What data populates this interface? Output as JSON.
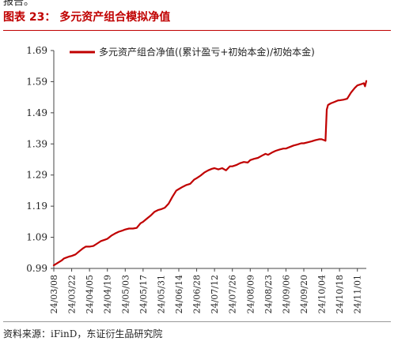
{
  "header": {
    "top_fragment": "报告。",
    "figure_title": "图表 23： 多元资产组合模拟净值"
  },
  "footer": {
    "source": "资料来源：iFinD，东证衍生品研究院"
  },
  "colors": {
    "accent": "#c00000",
    "series": "#c00000"
  },
  "chart_data": {
    "type": "line",
    "title": "",
    "xlabel": "",
    "ylabel": "",
    "ylim": [
      0.99,
      1.69
    ],
    "yticks": [
      "1.69",
      "1.59",
      "1.49",
      "1.39",
      "1.29",
      "1.19",
      "1.09",
      "0.99"
    ],
    "ytick_values": [
      1.69,
      1.59,
      1.49,
      1.39,
      1.29,
      1.19,
      1.09,
      0.99
    ],
    "xlim": [
      "2024-03-08",
      "2024-11-08"
    ],
    "xticks": [
      "24/03/08",
      "24/03/22",
      "24/04/05",
      "24/04/19",
      "24/05/03",
      "24/05/17",
      "24/05/31",
      "24/06/14",
      "24/06/28",
      "24/07/12",
      "24/07/26",
      "24/08/09",
      "24/08/23",
      "24/09/06",
      "24/09/20",
      "24/10/04",
      "24/10/18",
      "24/11/01"
    ],
    "xtick_dates": [
      "2024-03-08",
      "2024-03-22",
      "2024-04-05",
      "2024-04-19",
      "2024-05-03",
      "2024-05-17",
      "2024-05-31",
      "2024-06-14",
      "2024-06-28",
      "2024-07-12",
      "2024-07-26",
      "2024-08-09",
      "2024-08-23",
      "2024-09-06",
      "2024-09-20",
      "2024-10-04",
      "2024-10-18",
      "2024-11-01"
    ],
    "legend": {
      "position": "top-left",
      "entries": [
        "多元资产组合净值((累计盈亏+初始本金)/初始本金)"
      ]
    },
    "grid": false,
    "series": [
      {
        "name": "多元资产组合净值((累计盈亏+初始本金)/初始本金)",
        "x": [
          "2024-03-08",
          "2024-03-10",
          "2024-03-12",
          "2024-03-14",
          "2024-03-16",
          "2024-03-18",
          "2024-03-20",
          "2024-03-22",
          "2024-03-25",
          "2024-03-28",
          "2024-03-31",
          "2024-04-02",
          "2024-04-05",
          "2024-04-08",
          "2024-04-11",
          "2024-04-14",
          "2024-04-17",
          "2024-04-19",
          "2024-04-22",
          "2024-04-25",
          "2024-04-28",
          "2024-05-01",
          "2024-05-03",
          "2024-05-06",
          "2024-05-09",
          "2024-05-12",
          "2024-05-15",
          "2024-05-17",
          "2024-05-20",
          "2024-05-23",
          "2024-05-26",
          "2024-05-29",
          "2024-05-31",
          "2024-06-03",
          "2024-06-06",
          "2024-06-09",
          "2024-06-12",
          "2024-06-14",
          "2024-06-17",
          "2024-06-20",
          "2024-06-23",
          "2024-06-26",
          "2024-06-28",
          "2024-07-01",
          "2024-07-04",
          "2024-07-07",
          "2024-07-10",
          "2024-07-12",
          "2024-07-15",
          "2024-07-18",
          "2024-07-21",
          "2024-07-24",
          "2024-07-26",
          "2024-07-29",
          "2024-08-01",
          "2024-08-04",
          "2024-08-07",
          "2024-08-09",
          "2024-08-12",
          "2024-08-15",
          "2024-08-18",
          "2024-08-21",
          "2024-08-23",
          "2024-08-26",
          "2024-08-29",
          "2024-09-01",
          "2024-09-04",
          "2024-09-06",
          "2024-09-09",
          "2024-09-12",
          "2024-09-15",
          "2024-09-18",
          "2024-09-20",
          "2024-09-23",
          "2024-09-26",
          "2024-09-29",
          "2024-10-02",
          "2024-10-04",
          "2024-10-06",
          "2024-10-07",
          "2024-10-08",
          "2024-10-09",
          "2024-10-11",
          "2024-10-14",
          "2024-10-17",
          "2024-10-18",
          "2024-10-21",
          "2024-10-24",
          "2024-10-27",
          "2024-10-30",
          "2024-11-01",
          "2024-11-04",
          "2024-11-06",
          "2024-11-07",
          "2024-11-08"
        ],
        "y": [
          1.0,
          1.005,
          1.01,
          1.015,
          1.022,
          1.025,
          1.028,
          1.03,
          1.035,
          1.045,
          1.055,
          1.06,
          1.06,
          1.062,
          1.07,
          1.078,
          1.082,
          1.085,
          1.095,
          1.102,
          1.108,
          1.112,
          1.115,
          1.118,
          1.118,
          1.12,
          1.135,
          1.14,
          1.15,
          1.16,
          1.172,
          1.178,
          1.18,
          1.185,
          1.198,
          1.22,
          1.24,
          1.245,
          1.252,
          1.258,
          1.262,
          1.275,
          1.28,
          1.288,
          1.298,
          1.305,
          1.31,
          1.312,
          1.308,
          1.312,
          1.305,
          1.318,
          1.318,
          1.322,
          1.328,
          1.332,
          1.33,
          1.338,
          1.342,
          1.345,
          1.352,
          1.358,
          1.355,
          1.362,
          1.368,
          1.372,
          1.375,
          1.375,
          1.38,
          1.385,
          1.388,
          1.392,
          1.392,
          1.395,
          1.398,
          1.402,
          1.405,
          1.405,
          1.402,
          1.4,
          1.5,
          1.515,
          1.52,
          1.525,
          1.53,
          1.53,
          1.532,
          1.535,
          1.555,
          1.57,
          1.578,
          1.582,
          1.585,
          1.575,
          1.592
        ]
      }
    ]
  }
}
